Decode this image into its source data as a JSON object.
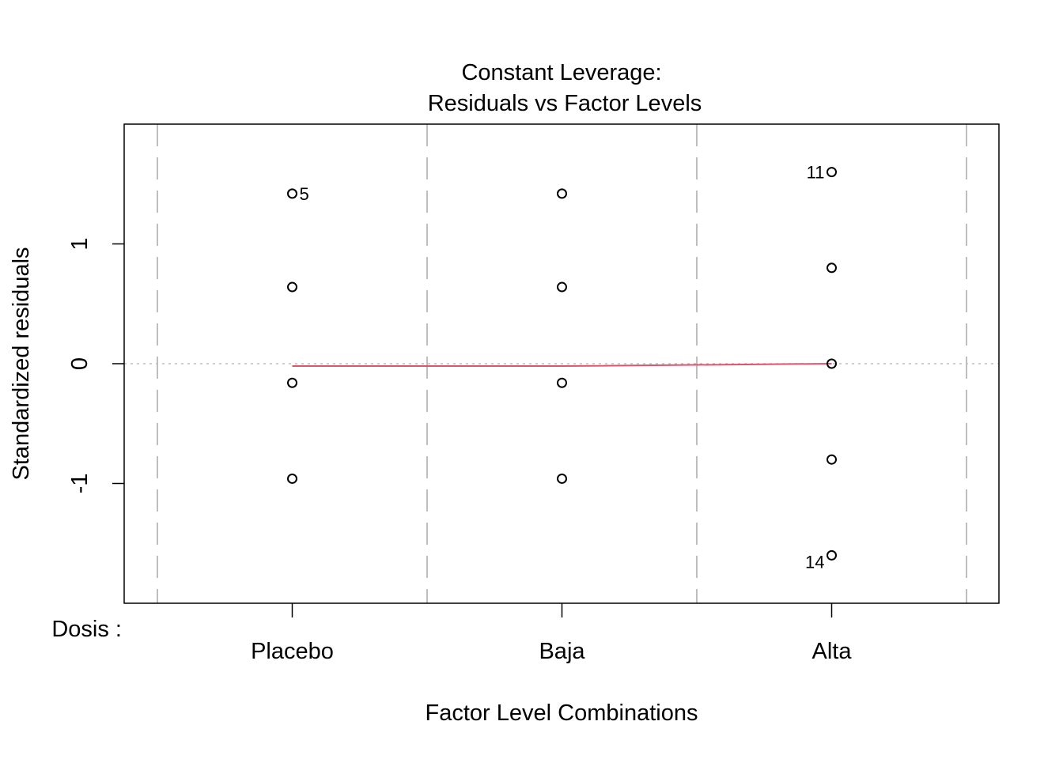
{
  "chart_data": {
    "type": "scatter",
    "title": "Constant Leverage:",
    "subtitle": "Residuals vs Factor Levels",
    "xlabel": "Factor Level Combinations",
    "ylabel": "Standardized residuals",
    "factor_label": "Dosis :",
    "categories": [
      "Placebo",
      "Baja",
      "Alta"
    ],
    "ylim": [
      -2,
      2
    ],
    "y_ticks": [
      -1,
      0,
      1
    ],
    "y_tick_labels": [
      "-1",
      "0",
      "1"
    ],
    "grid": false,
    "points": [
      {
        "category": "Placebo",
        "y": 1.42,
        "label": "5"
      },
      {
        "category": "Placebo",
        "y": 0.64
      },
      {
        "category": "Placebo",
        "y": -0.16
      },
      {
        "category": "Placebo",
        "y": -0.96
      },
      {
        "category": "Baja",
        "y": 1.42
      },
      {
        "category": "Baja",
        "y": 0.64
      },
      {
        "category": "Baja",
        "y": -0.16
      },
      {
        "category": "Baja",
        "y": -0.96
      },
      {
        "category": "Alta",
        "y": 1.6,
        "label": "11"
      },
      {
        "category": "Alta",
        "y": 0.8
      },
      {
        "category": "Alta",
        "y": 0.0
      },
      {
        "category": "Alta",
        "y": -0.8
      },
      {
        "category": "Alta",
        "y": -1.6,
        "label": "14"
      }
    ],
    "smooth_line": {
      "color": "#DF536B",
      "points": [
        {
          "category": "Placebo",
          "y": -0.02
        },
        {
          "category": "Baja",
          "y": -0.02
        },
        {
          "category": "Alta",
          "y": 0.0
        }
      ]
    },
    "reference_line_y": 0,
    "colors": {
      "points": "#000000",
      "smooth": "#DF536B",
      "divider": "#BEBEBE",
      "reference": "#BEBEBE"
    }
  }
}
